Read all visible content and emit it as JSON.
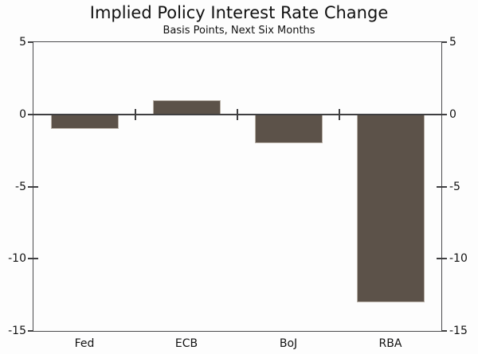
{
  "figure": {
    "background": "#fdfdfd",
    "bar_color": "#5c5249",
    "bar_border_color": "#b8b0a7",
    "axis_color": "#4b4b4d",
    "zero_line_color": "#3f3f41",
    "text_color": "#121212"
  },
  "chart_data": {
    "type": "bar",
    "title": "Implied Policy Interest Rate Change",
    "subtitle": "Basis Points, Next Six Months",
    "categories": [
      "Fed",
      "ECB",
      "BoJ",
      "RBA"
    ],
    "values": [
      -1,
      1,
      -2,
      -13
    ],
    "ylim": [
      -15,
      5
    ],
    "yticks": [
      5,
      0,
      -5,
      -10,
      -15
    ],
    "ytick_labels": [
      "5",
      "0",
      "-5",
      "-10",
      "-15"
    ],
    "xlabel": "",
    "ylabel": "",
    "grid": false,
    "legend": false,
    "y_axis_sides": [
      "left",
      "right"
    ],
    "zero_baseline": true
  }
}
